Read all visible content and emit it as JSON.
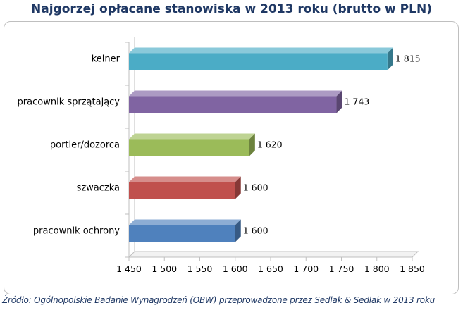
{
  "title": "Najgorzej opłacane stanowiska w 2013 roku (brutto w PLN)",
  "source": "Źródło: Ogólnopolskie Badanie Wynagrodzeń (OBW) przeprowadzone przez Sedlak & Sedlak w 2013 roku",
  "chart_data": {
    "type": "bar",
    "orientation": "horizontal",
    "title": "Najgorzej opłacane stanowiska w 2013 roku (brutto w PLN)",
    "categories": [
      "kelner",
      "pracownik sprzątający",
      "portier/dozorca",
      "szwaczka",
      "pracownik ochrony"
    ],
    "values": [
      1815,
      1743,
      1620,
      1600,
      1600
    ],
    "value_labels": [
      "1 815",
      "1 743",
      "1 620",
      "1 600",
      "1 600"
    ],
    "colors": [
      "#4bacc6",
      "#8064a2",
      "#9bbb59",
      "#c0504d",
      "#4f81bd"
    ],
    "xlim": [
      1450,
      1850
    ],
    "xticks": [
      1450,
      1500,
      1550,
      1600,
      1650,
      1700,
      1750,
      1800,
      1850
    ],
    "xtick_labels": [
      "1 450",
      "1 500",
      "1 550",
      "1 600",
      "1 650",
      "1 700",
      "1 750",
      "1 800",
      "1 850"
    ],
    "xlabel": "",
    "ylabel": "",
    "grid": false,
    "legend": "none"
  }
}
